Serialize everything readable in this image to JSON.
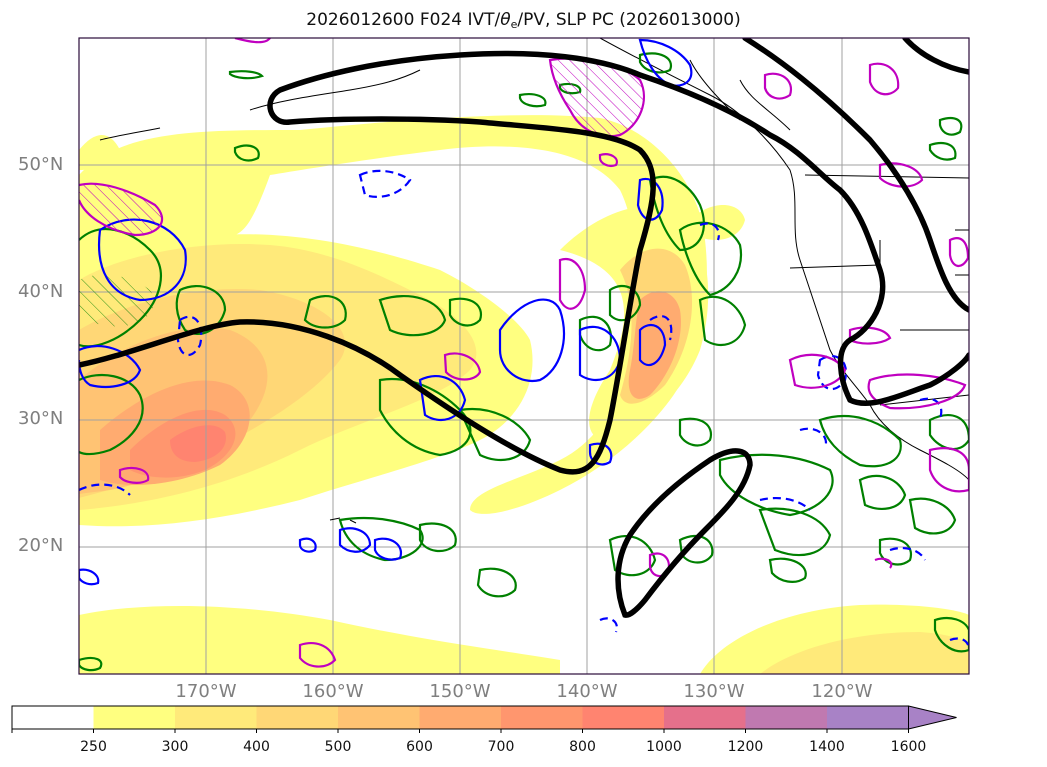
{
  "title": {
    "prefix": "2026012600 F024 IVT/",
    "theta": "θ",
    "theta_sub": "e",
    "suffix": "/PV, SLP PC (2026013000)"
  },
  "map": {
    "lat_labels": [
      "50°N",
      "40°N",
      "30°N",
      "20°N"
    ],
    "lon_labels": [
      "170°W",
      "160°W",
      "150°W",
      "140°W",
      "130°W",
      "120°W"
    ],
    "lat_values": [
      50,
      40,
      30,
      20
    ],
    "lon_values": [
      -170,
      -160,
      -150,
      -140,
      -130,
      -120
    ],
    "lat_range": [
      10,
      60
    ],
    "lon_range": [
      -180,
      -110
    ],
    "gridlines": true
  },
  "colorbar": {
    "tick_labels": [
      "250",
      "300",
      "400",
      "500",
      "600",
      "700",
      "800",
      "1000",
      "1200",
      "1400",
      "1600"
    ],
    "levels": [
      250,
      300,
      400,
      500,
      600,
      700,
      800,
      1000,
      1200,
      1400,
      1600
    ],
    "colors": [
      "#ffffff",
      "#ffff80",
      "#ffea7a",
      "#ffd776",
      "#ffc373",
      "#ffab70",
      "#ff966e",
      "#ff8470",
      "#e5708b",
      "#c079b0",
      "#a882c6"
    ],
    "extend": "max"
  },
  "colors": {
    "slp_contour": "#000000",
    "theta_e_contour": "#008000",
    "pv_positive": "#0000ff",
    "pv_contour": "#c000c0",
    "gridline": "#a0a0a0",
    "coastline": "#000000"
  }
}
